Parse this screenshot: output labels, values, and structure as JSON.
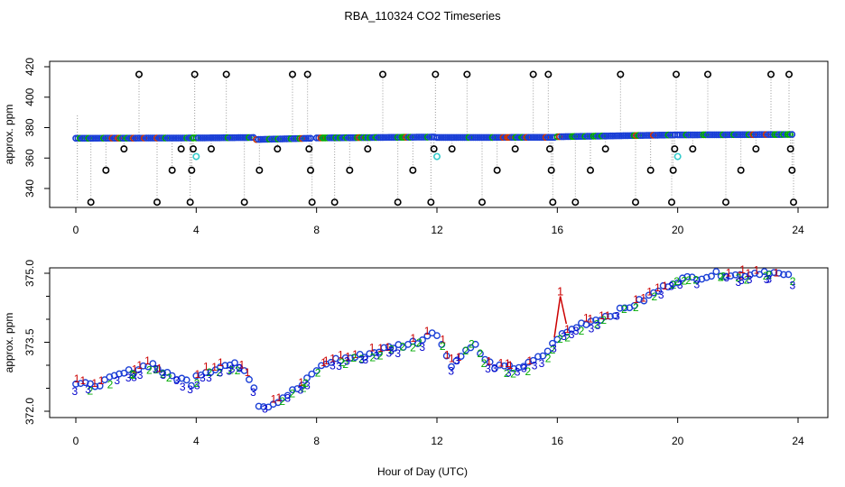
{
  "title": "RBA_110324  CO2 Timeseries",
  "xlabel": "Hour of Day (UTC)",
  "chart_data": [
    {
      "type": "scatter",
      "panel": "top",
      "ylabel": "approx. ppm",
      "xlim": [
        0,
        24
      ],
      "ylim": [
        330,
        420
      ],
      "xticks": [
        "0",
        "4",
        "8",
        "12",
        "16",
        "20",
        "24"
      ],
      "yticks": [
        "340",
        "360",
        "380",
        "400",
        "420"
      ],
      "baseline_segments": [
        {
          "x": [
            0.0,
            3.9
          ],
          "y": [
            373.0,
            373.2
          ]
        },
        {
          "x": [
            4.0,
            5.9
          ],
          "y": [
            373.2,
            373.5
          ]
        },
        {
          "x": [
            6.0,
            7.8
          ],
          "y": [
            372.2,
            373.0
          ]
        },
        {
          "x": [
            8.0,
            11.9
          ],
          "y": [
            373.2,
            373.8
          ]
        },
        {
          "x": [
            12.0,
            15.9
          ],
          "y": [
            373.5,
            373.6
          ]
        },
        {
          "x": [
            16.0,
            19.9
          ],
          "y": [
            374.0,
            375.2
          ]
        },
        {
          "x": [
            20.0,
            23.8
          ],
          "y": [
            375.2,
            375.5
          ]
        }
      ],
      "outliers_black": [
        [
          0.5,
          331
        ],
        [
          1.0,
          352
        ],
        [
          1.6,
          366
        ],
        [
          2.1,
          415
        ],
        [
          2.7,
          331
        ],
        [
          3.2,
          352
        ],
        [
          3.5,
          366
        ],
        [
          3.8,
          331
        ],
        [
          3.85,
          352
        ],
        [
          3.9,
          366
        ],
        [
          3.95,
          415
        ],
        [
          4.5,
          366
        ],
        [
          5.0,
          415
        ],
        [
          5.6,
          331
        ],
        [
          6.1,
          352
        ],
        [
          6.7,
          366
        ],
        [
          7.2,
          415
        ],
        [
          7.7,
          415
        ],
        [
          7.75,
          366
        ],
        [
          7.8,
          352
        ],
        [
          7.85,
          331
        ],
        [
          8.6,
          331
        ],
        [
          9.1,
          352
        ],
        [
          9.7,
          366
        ],
        [
          10.2,
          415
        ],
        [
          10.7,
          331
        ],
        [
          11.2,
          352
        ],
        [
          11.8,
          331
        ],
        [
          11.9,
          366
        ],
        [
          11.95,
          415
        ],
        [
          12.5,
          366
        ],
        [
          13.0,
          415
        ],
        [
          13.5,
          331
        ],
        [
          14.0,
          352
        ],
        [
          14.6,
          366
        ],
        [
          15.2,
          415
        ],
        [
          15.7,
          415
        ],
        [
          15.75,
          366
        ],
        [
          15.8,
          352
        ],
        [
          15.85,
          331
        ],
        [
          16.6,
          331
        ],
        [
          17.1,
          352
        ],
        [
          17.6,
          366
        ],
        [
          18.1,
          415
        ],
        [
          18.6,
          331
        ],
        [
          19.1,
          352
        ],
        [
          19.8,
          331
        ],
        [
          19.85,
          352
        ],
        [
          19.9,
          366
        ],
        [
          19.95,
          415
        ],
        [
          20.5,
          366
        ],
        [
          21.0,
          415
        ],
        [
          21.6,
          331
        ],
        [
          22.1,
          352
        ],
        [
          22.6,
          366
        ],
        [
          23.1,
          415
        ],
        [
          23.7,
          415
        ],
        [
          23.75,
          366
        ],
        [
          23.8,
          352
        ],
        [
          23.85,
          331
        ]
      ],
      "outliers_cyan": [
        [
          4.0,
          361
        ],
        [
          12.0,
          361
        ],
        [
          20.0,
          361
        ]
      ]
    },
    {
      "type": "scatter",
      "panel": "bottom",
      "ylabel": "approx. ppm",
      "xlim": [
        0,
        24
      ],
      "ylim": [
        372.0,
        375.2
      ],
      "xticks": [
        "0",
        "4",
        "8",
        "12",
        "16",
        "20",
        "24"
      ],
      "yticks": [
        "372.0",
        "373.5",
        "375.0"
      ],
      "series": [
        {
          "name": "1",
          "color": "#cc0000"
        },
        {
          "name": "2",
          "color": "#00aa00"
        },
        {
          "name": "3",
          "color": "#0000cc"
        }
      ],
      "trend": [
        [
          0.0,
          372.6
        ],
        [
          0.5,
          372.55
        ],
        [
          1.0,
          372.65
        ],
        [
          1.5,
          372.8
        ],
        [
          2.0,
          372.9
        ],
        [
          2.5,
          373.05
        ],
        [
          3.0,
          372.8
        ],
        [
          3.5,
          372.7
        ],
        [
          3.9,
          372.6
        ],
        [
          4.0,
          372.8
        ],
        [
          4.5,
          372.9
        ],
        [
          5.0,
          373.0
        ],
        [
          5.5,
          373.0
        ],
        [
          5.9,
          372.6
        ],
        [
          6.1,
          372.1
        ],
        [
          6.5,
          372.15
        ],
        [
          7.0,
          372.35
        ],
        [
          7.5,
          372.55
        ],
        [
          8.0,
          372.9
        ],
        [
          8.5,
          373.1
        ],
        [
          9.0,
          373.15
        ],
        [
          9.5,
          373.2
        ],
        [
          10.0,
          373.3
        ],
        [
          10.5,
          373.4
        ],
        [
          11.0,
          373.45
        ],
        [
          11.5,
          373.55
        ],
        [
          11.9,
          373.8
        ],
        [
          12.1,
          373.5
        ],
        [
          12.5,
          373.0
        ],
        [
          12.8,
          373.2
        ],
        [
          13.2,
          373.5
        ],
        [
          13.6,
          373.1
        ],
        [
          14.0,
          372.95
        ],
        [
          14.5,
          372.95
        ],
        [
          15.0,
          373.0
        ],
        [
          15.5,
          373.2
        ],
        [
          15.8,
          373.4
        ],
        [
          16.0,
          373.6
        ],
        [
          16.3,
          373.7
        ],
        [
          16.8,
          373.9
        ],
        [
          17.3,
          374.0
        ],
        [
          17.8,
          374.1
        ],
        [
          18.3,
          374.25
        ],
        [
          18.8,
          374.4
        ],
        [
          19.3,
          374.6
        ],
        [
          19.8,
          374.8
        ],
        [
          20.0,
          374.85
        ],
        [
          20.5,
          374.9
        ],
        [
          21.0,
          374.95
        ],
        [
          21.5,
          375.0
        ],
        [
          22.0,
          374.95
        ],
        [
          22.5,
          375.0
        ],
        [
          23.0,
          375.05
        ],
        [
          23.5,
          374.95
        ],
        [
          23.8,
          374.9
        ]
      ],
      "red_spike": [
        [
          15.9,
          373.6
        ],
        [
          16.1,
          374.5
        ],
        [
          16.3,
          373.9
        ]
      ]
    }
  ]
}
